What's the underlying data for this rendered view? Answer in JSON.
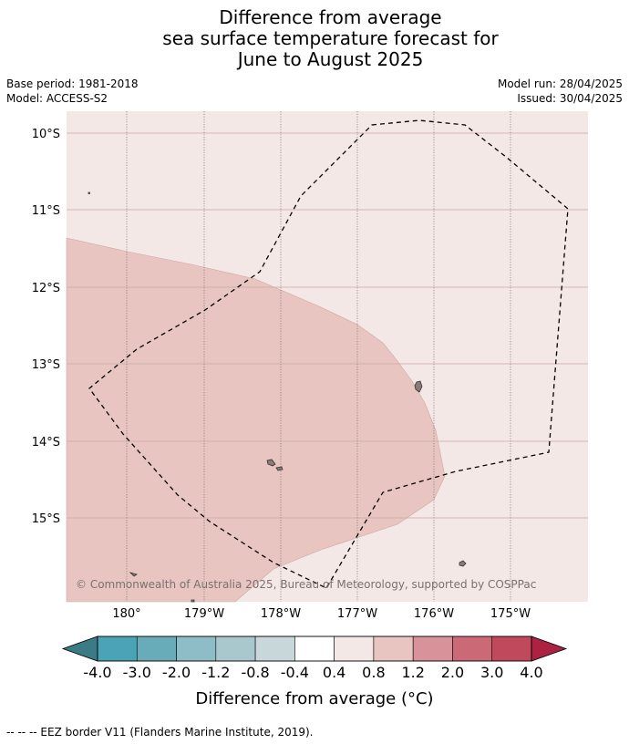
{
  "title": [
    "Difference from average",
    "sea surface temperature forecast for",
    "June to August 2025"
  ],
  "meta_left": [
    "Base period: 1981-2018",
    "Model: ACCESS-S2"
  ],
  "meta_right": [
    "Model run: 28/04/2025",
    "Issued: 30/04/2025"
  ],
  "map": {
    "latitude_labels": [
      "10°S",
      "11°S",
      "12°S",
      "13°S",
      "14°S",
      "15°S"
    ],
    "longitude_labels": [
      "180°",
      "179°W",
      "178°W",
      "177°W",
      "176°W",
      "175°W"
    ],
    "extent": {
      "lon": [
        179.2,
        -174.0
      ],
      "lat": [
        -9.7,
        -16.1
      ]
    },
    "background_category": "0.4 to 0.8",
    "anomaly_region_category": "0.8 to 1.2",
    "colors": {
      "ocean_anomaly_0_4_0_8": "#f4e8e6",
      "anomaly_0_8_1_2": "#e8c5c0",
      "land": "#8a7a78"
    },
    "copyright": "© Commonwealth of Australia 2025, Bureau of Meteorology, supported by COSPPac",
    "eez_boundary": "dashed"
  },
  "colorbar": {
    "tick_labels": [
      "-4.0",
      "-3.0",
      "-2.0",
      "-1.2",
      "-0.8",
      "-0.4",
      "0.4",
      "0.8",
      "1.2",
      "2.0",
      "3.0",
      "4.0"
    ],
    "colors": [
      "#3b7b86",
      "#4aa4b5",
      "#68acba",
      "#8ebdc8",
      "#a9c8ce",
      "#c8d8da",
      "#ffffff",
      "#f4e8e6",
      "#e8c5c0",
      "#d7929a",
      "#cb6a76",
      "#c04a5c",
      "#ad2240"
    ],
    "label": "Difference from average (°C)"
  },
  "footer": "--  --  -- EEZ border V11 (Flanders Marine Institute, 2019)."
}
